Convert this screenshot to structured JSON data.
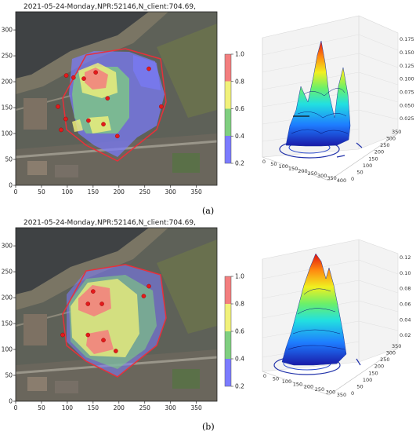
{
  "panels": [
    {
      "id": "a",
      "label": "(a)",
      "map_title": "2021-05-24-Monday,NPR:52146,N_client:704.69,",
      "peak_height": 0.19
    },
    {
      "id": "b",
      "label": "(b)",
      "map_title": "2021-05-24-Monday,NPR:52146,N_client:704.69,",
      "peak_height": 0.125
    }
  ],
  "chart_data": [
    {
      "type": "heatmap",
      "panel": "a",
      "title": "2021-05-24-Monday,NPR:52146,N_client:704.69,",
      "x_ticks": [
        0,
        50,
        100,
        150,
        200,
        250,
        300,
        350
      ],
      "y_ticks": [
        0,
        50,
        100,
        150,
        200,
        250,
        300
      ],
      "xlim": [
        0,
        390
      ],
      "ylim": [
        0,
        335
      ],
      "colorbar": {
        "ticks": [
          "0.2",
          "0.4",
          "0.6",
          "0.8",
          "1.0"
        ],
        "range": [
          0.2,
          1.0
        ],
        "colors": [
          "#7b7bff",
          "#7fcf7f",
          "#f1f17a",
          "#f37e7e"
        ]
      },
      "points": [
        [
          98,
          212
        ],
        [
          112,
          208
        ],
        [
          132,
          206
        ],
        [
          155,
          218
        ],
        [
          178,
          168
        ],
        [
          82,
          152
        ],
        [
          97,
          128
        ],
        [
          141,
          125
        ],
        [
          170,
          118
        ],
        [
          88,
          107
        ],
        [
          197,
          95
        ],
        [
          282,
          152
        ],
        [
          258,
          225
        ]
      ]
    },
    {
      "type": "surface3d",
      "panel": "a",
      "x_ticks": [
        0,
        50,
        100,
        150,
        200,
        250,
        300,
        350,
        400
      ],
      "y_ticks": [
        0,
        50,
        100,
        150,
        200,
        250,
        300,
        350
      ],
      "z_ticks": [
        "0.025",
        "0.050",
        "0.075",
        "0.100",
        "0.125",
        "0.150",
        "0.175"
      ],
      "zlim": [
        0,
        0.19
      ]
    },
    {
      "type": "heatmap",
      "panel": "b",
      "title": "2021-05-24-Monday,NPR:52146,N_client:704.69,",
      "x_ticks": [
        0,
        50,
        100,
        150,
        200,
        250,
        300,
        350
      ],
      "y_ticks": [
        0,
        50,
        100,
        150,
        200,
        250,
        300
      ],
      "xlim": [
        0,
        390
      ],
      "ylim": [
        0,
        335
      ],
      "colorbar": {
        "ticks": [
          "0.2",
          "0.4",
          "0.6",
          "0.8",
          "1.0"
        ],
        "range": [
          0.2,
          1.0
        ],
        "colors": [
          "#7b7bff",
          "#7fcf7f",
          "#f1f17a",
          "#f37e7e"
        ]
      },
      "points": [
        [
          150,
          212
        ],
        [
          140,
          188
        ],
        [
          167,
          188
        ],
        [
          91,
          128
        ],
        [
          140,
          128
        ],
        [
          170,
          118
        ],
        [
          194,
          97
        ],
        [
          258,
          222
        ],
        [
          248,
          203
        ]
      ]
    },
    {
      "type": "surface3d",
      "panel": "b",
      "x_ticks": [
        0,
        50,
        100,
        150,
        200,
        250,
        300,
        350
      ],
      "y_ticks": [
        0,
        50,
        100,
        150,
        200,
        250,
        300,
        350
      ],
      "z_ticks": [
        "0.02",
        "0.04",
        "0.06",
        "0.08",
        "0.10",
        "0.12"
      ],
      "zlim": [
        0,
        0.125
      ]
    }
  ]
}
